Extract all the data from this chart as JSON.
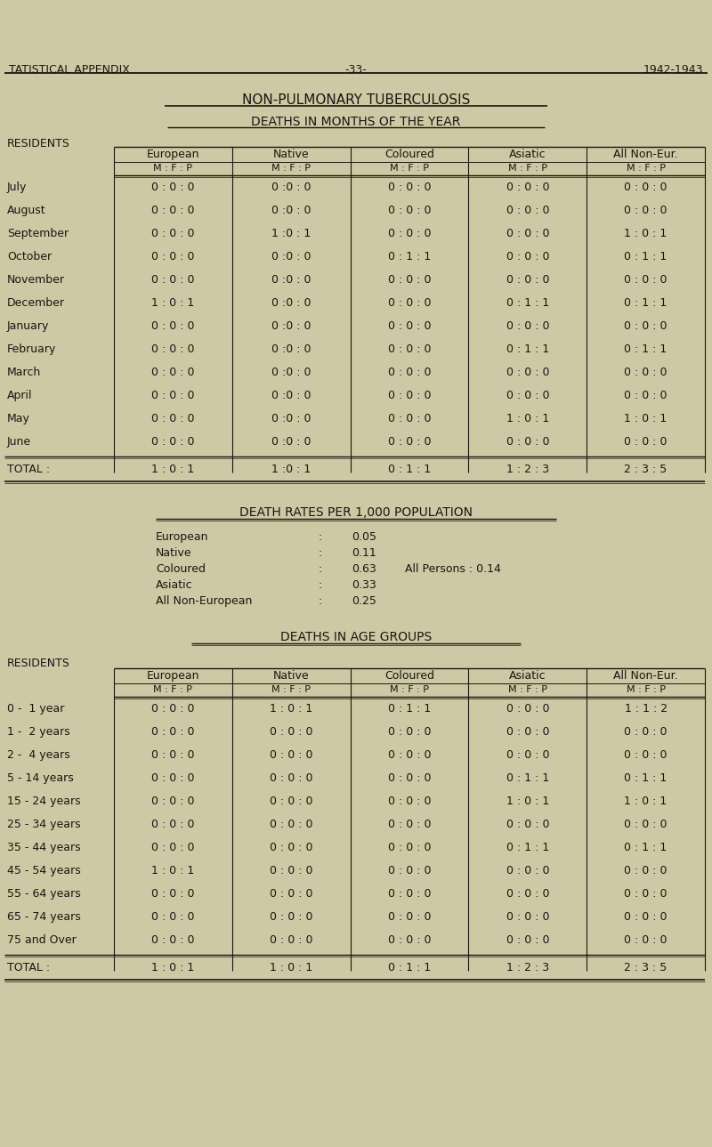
{
  "bg_color": "#cdc9a5",
  "text_color": "#1a1510",
  "header_left": "TATISTICAL APPENDIX",
  "header_center": "-33-",
  "header_right": "1942-1943",
  "title1": "NON-PULMONARY TUBERCULOSIS",
  "title2": "DEATHS IN MONTHS OF THE YEAR",
  "section1_label": "RESIDENTS",
  "months_table_cols": [
    "European",
    "Native",
    "Coloured",
    "Asiatic",
    "All Non-Eur."
  ],
  "months": [
    "July",
    "August",
    "September",
    "October",
    "November",
    "December",
    "January",
    "February",
    "March",
    "April",
    "May",
    "June"
  ],
  "months_data": {
    "European": [
      "0 : 0 : 0",
      "0 : 0 : 0",
      "0 : 0 : 0",
      "0 : 0 : 0",
      "0 : 0 : 0",
      "1 : 0 : 1",
      "0 : 0 : 0",
      "0 : 0 : 0",
      "0 : 0 : 0",
      "0 : 0 : 0",
      "0 : 0 : 0",
      "0 : 0 : 0"
    ],
    "Native": [
      "0 :0 : 0",
      "0 :0 : 0",
      "1 :0 : 1",
      "0 :0 : 0",
      "0 :0 : 0",
      "0 :0 : 0",
      "0 :0 : 0",
      "0 :0 : 0",
      "0 :0 : 0",
      "0 :0 : 0",
      "0 :0 : 0",
      "0 :0 : 0"
    ],
    "Coloured": [
      "0 : 0 : 0",
      "0 : 0 : 0",
      "0 : 0 : 0",
      "0 : 1 : 1",
      "0 : 0 : 0",
      "0 : 0 : 0",
      "0 : 0 : 0",
      "0 : 0 : 0",
      "0 : 0 : 0",
      "0 : 0 : 0",
      "0 : 0 : 0",
      "0 : 0 : 0"
    ],
    "Asiatic": [
      "0 : 0 : 0",
      "0 : 0 : 0",
      "0 : 0 : 0",
      "0 : 0 : 0",
      "0 : 0 : 0",
      "0 : 1 : 1",
      "0 : 0 : 0",
      "0 : 1 : 1",
      "0 : 0 : 0",
      "0 : 0 : 0",
      "1 : 0 : 1",
      "0 : 0 : 0"
    ],
    "All Non-Eur.": [
      "0 : 0 : 0",
      "0 : 0 : 0",
      "1 : 0 : 1",
      "0 : 1 : 1",
      "0 : 0 : 0",
      "0 : 1 : 1",
      "0 : 0 : 0",
      "0 : 1 : 1",
      "0 : 0 : 0",
      "0 : 0 : 0",
      "1 : 0 : 1",
      "0 : 0 : 0"
    ]
  },
  "months_total": {
    "European": "1 : 0 : 1",
    "Native": "1 :0 : 1",
    "Coloured": "0 : 1 : 1",
    "Asiatic": "1 : 2 : 3",
    "All Non-Eur.": "2 : 3 : 5"
  },
  "death_rates_title": "DEATH RATES PER 1,000 POPULATION",
  "death_rates": [
    [
      "European",
      "0.05"
    ],
    [
      "Native",
      "0.11"
    ],
    [
      "Coloured",
      "0.63"
    ],
    [
      "Asiatic",
      "0.33"
    ],
    [
      "All Non-European",
      "0.25"
    ]
  ],
  "all_persons_rate": "All Persons : 0.14",
  "age_groups_title": "DEATHS IN AGE GROUPS",
  "section2_label": "RESIDENTS",
  "age_groups": [
    "0 -  1 year",
    "1 -  2 years",
    "2 -  4 years",
    "5 - 14 years",
    "15 - 24 years",
    "25 - 34 years",
    "35 - 44 years",
    "45 - 54 years",
    "55 - 64 years",
    "65 - 74 years",
    "75 and Over"
  ],
  "age_data": {
    "European": [
      "0 : 0 : 0",
      "0 : 0 : 0",
      "0 : 0 : 0",
      "0 : 0 : 0",
      "0 : 0 : 0",
      "0 : 0 : 0",
      "0 : 0 : 0",
      "1 : 0 : 1",
      "0 : 0 : 0",
      "0 : 0 : 0",
      "0 : 0 : 0"
    ],
    "Native": [
      "1 : 0 : 1",
      "0 : 0 : 0",
      "0 : 0 : 0",
      "0 : 0 : 0",
      "0 : 0 : 0",
      "0 : 0 : 0",
      "0 : 0 : 0",
      "0 : 0 : 0",
      "0 : 0 : 0",
      "0 : 0 : 0",
      "0 : 0 : 0"
    ],
    "Coloured": [
      "0 : 1 : 1",
      "0 : 0 : 0",
      "0 : 0 : 0",
      "0 : 0 : 0",
      "0 : 0 : 0",
      "0 : 0 : 0",
      "0 : 0 : 0",
      "0 : 0 : 0",
      "0 : 0 : 0",
      "0 : 0 : 0",
      "0 : 0 : 0"
    ],
    "Asiatic": [
      "0 : 0 : 0",
      "0 : 0 : 0",
      "0 : 0 : 0",
      "0 : 1 : 1",
      "1 : 0 : 1",
      "0 : 0 : 0",
      "0 : 1 : 1",
      "0 : 0 : 0",
      "0 : 0 : 0",
      "0 : 0 : 0",
      "0 : 0 : 0"
    ],
    "All Non-Eur.": [
      "1 : 1 : 2",
      "0 : 0 : 0",
      "0 : 0 : 0",
      "0 : 1 : 1",
      "1 : 0 : 1",
      "0 : 0 : 0",
      "0 : 1 : 1",
      "0 : 0 : 0",
      "0 : 0 : 0",
      "0 : 0 : 0",
      "0 : 0 : 0"
    ]
  },
  "age_total": {
    "European": "1 : 0 : 1",
    "Native": "1 : 0 : 1",
    "Coloured": "0 : 1 : 1",
    "Asiatic": "1 : 2 : 3",
    "All Non-Eur.": "2 : 3 : 5"
  }
}
